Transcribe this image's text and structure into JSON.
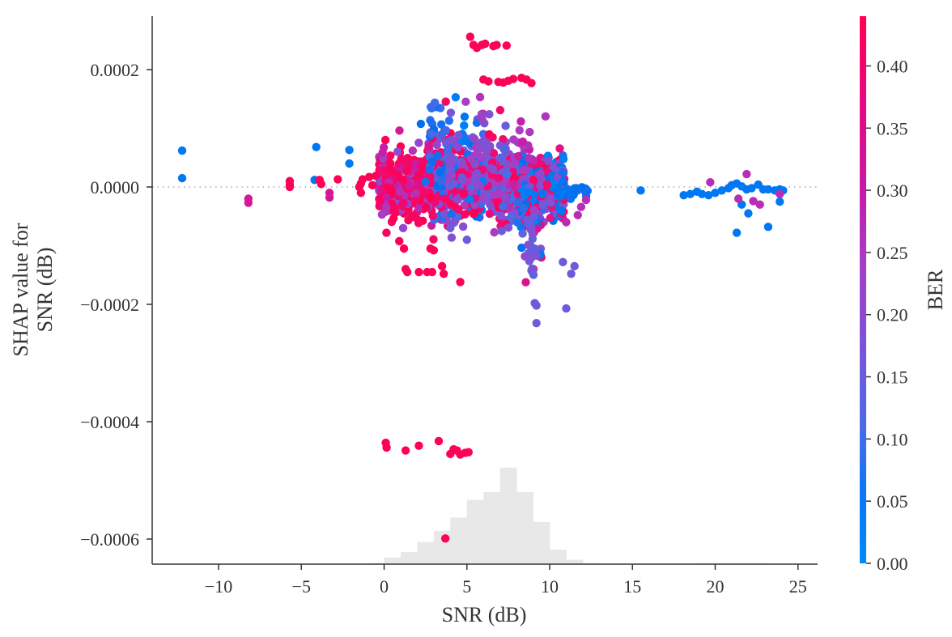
{
  "chart_data": {
    "type": "scatter",
    "title": "",
    "xlabel": "SNR (dB)",
    "ylabel": "SHAP value for\nSNR (dB)",
    "ylabel_lines": [
      "SHAP value for",
      "SNR (dB)"
    ],
    "xlim": [
      -14,
      26.3
    ],
    "ylim": [
      -0.00064,
      0.00029
    ],
    "xticks": [
      -10,
      -5,
      0,
      5,
      10,
      15,
      20,
      25
    ],
    "xtick_labels": [
      "−10",
      "−5",
      "0",
      "5",
      "10",
      "15",
      "20",
      "25"
    ],
    "yticks": [
      0.0002,
      0.0,
      -0.0002,
      -0.0004,
      -0.0006
    ],
    "ytick_labels": [
      "0.0002",
      "0.0000",
      "−0.0002",
      "−0.0004",
      "−0.0006"
    ],
    "zero_line": {
      "y": 0.0,
      "style": "dotted",
      "color": "#999999"
    },
    "grid": false,
    "colorbar": {
      "label": "BER",
      "range": [
        0.0,
        0.44
      ],
      "ticks": [
        0.0,
        0.05,
        0.1,
        0.15,
        0.2,
        0.25,
        0.3,
        0.35,
        0.4
      ],
      "tick_labels": [
        "0.00",
        "0.05",
        "0.10",
        "0.15",
        "0.20",
        "0.25",
        "0.30",
        "0.35",
        "0.40"
      ],
      "colormap": [
        "#008bfb",
        "#0070f0",
        "#4f6ae6",
        "#7c53d6",
        "#a83ec4",
        "#c81ea6",
        "#e0108a",
        "#f20a6c",
        "#ff0052"
      ]
    },
    "histogram": {
      "color": "#e8e8e8",
      "bins_snr": [
        [
          -1,
          0,
          0.01
        ],
        [
          0,
          1,
          0.06
        ],
        [
          1,
          2,
          0.11
        ],
        [
          2,
          3,
          0.2
        ],
        [
          3,
          4,
          0.3
        ],
        [
          4,
          5,
          0.42
        ],
        [
          5,
          6,
          0.58
        ],
        [
          6,
          7,
          0.65
        ],
        [
          7,
          8,
          0.87
        ],
        [
          8,
          9,
          0.65
        ],
        [
          9,
          10,
          0.38
        ],
        [
          10,
          11,
          0.13
        ],
        [
          11,
          12,
          0.04
        ],
        [
          12,
          13,
          0.01
        ],
        [
          18,
          19,
          0.005
        ],
        [
          19,
          20,
          0.01
        ],
        [
          20,
          21,
          0.01
        ],
        [
          21,
          22,
          0.01
        ],
        [
          22,
          23,
          0.01
        ],
        [
          23,
          24,
          0.005
        ]
      ]
    },
    "series": [
      {
        "name": "outliers_high_red",
        "ber": 0.43,
        "points": [
          [
            5.2,
            0.000256
          ],
          [
            5.4,
            0.000242
          ],
          [
            5.6,
            0.000237
          ],
          [
            5.9,
            0.000242
          ],
          [
            6.1,
            0.000244
          ],
          [
            6.6,
            0.00024
          ],
          [
            6.8,
            0.000242
          ],
          [
            7.4,
            0.000241
          ],
          [
            6.0,
            0.000183
          ],
          [
            6.3,
            0.00018
          ],
          [
            6.9,
            0.000179
          ],
          [
            7.2,
            0.000178
          ],
          [
            7.5,
            0.000181
          ],
          [
            7.8,
            0.000184
          ],
          [
            8.3,
            0.000186
          ],
          [
            8.6,
            0.000183
          ],
          [
            8.9,
            0.000177
          ]
        ]
      },
      {
        "name": "outliers_low_red",
        "ber": 0.43,
        "points": [
          [
            0.1,
            -0.000436
          ],
          [
            0.15,
            -0.000444
          ],
          [
            1.3,
            -0.000449
          ],
          [
            2.1,
            -0.000441
          ],
          [
            3.3,
            -0.000433
          ],
          [
            4.0,
            -0.000455
          ],
          [
            4.2,
            -0.000447
          ],
          [
            4.4,
            -0.000449
          ],
          [
            4.6,
            -0.000456
          ],
          [
            4.9,
            -0.000453
          ],
          [
            5.1,
            -0.000452
          ],
          [
            3.7,
            -0.000599
          ]
        ]
      },
      {
        "name": "mid_low_red",
        "ber": 0.43,
        "points": [
          [
            1.2,
            -0.000105
          ],
          [
            1.3,
            -0.00014
          ],
          [
            1.4,
            -0.000145
          ],
          [
            2.1,
            -0.000145
          ],
          [
            2.6,
            -0.000145
          ],
          [
            2.9,
            -0.000145
          ],
          [
            3.5,
            -0.000135
          ],
          [
            3.6,
            -0.000148
          ],
          [
            4.6,
            -0.000162
          ],
          [
            2.8,
            -0.000105
          ],
          [
            3.0,
            -0.000108
          ]
        ]
      },
      {
        "name": "left_blue",
        "ber": 0.04,
        "points": [
          [
            -12.2,
            6.2e-05
          ],
          [
            -12.2,
            1.5e-05
          ],
          [
            -4.1,
            6.8e-05
          ],
          [
            -2.1,
            6.3e-05
          ],
          [
            -2.1,
            4e-05
          ],
          [
            -4.2,
            1.2e-05
          ],
          [
            15.5,
            -6e-06
          ]
        ]
      },
      {
        "name": "left_magenta",
        "ber": 0.3,
        "points": [
          [
            -8.2,
            -2e-05
          ],
          [
            -8.2,
            -2.7e-05
          ],
          [
            -3.3,
            -1e-05
          ],
          [
            -3.3,
            -1.8e-05
          ]
        ]
      },
      {
        "name": "left_red",
        "ber": 0.43,
        "points": [
          [
            -5.7,
            1e-05
          ],
          [
            -5.7,
            4e-06
          ],
          [
            -5.7,
            0.0
          ],
          [
            -3.9,
            1.2e-05
          ],
          [
            -3.8,
            5e-06
          ],
          [
            -2.8,
            1.3e-05
          ],
          [
            -1.5,
            0.0
          ],
          [
            -1.4,
            6e-06
          ],
          [
            -1.3,
            1.3e-05
          ],
          [
            -0.9,
            1.7e-05
          ],
          [
            -0.7,
            3e-06
          ],
          [
            -0.5,
            1.9e-05
          ],
          [
            -1.4,
            -1e-05
          ]
        ]
      },
      {
        "name": "right_cluster_blue",
        "ber": 0.04,
        "points": [
          [
            18.1,
            -1.4e-05
          ],
          [
            18.5,
            -1.2e-05
          ],
          [
            18.9,
            -8e-06
          ],
          [
            19.2,
            -1.2e-05
          ],
          [
            19.6,
            -1.4e-05
          ],
          [
            20.0,
            -1e-05
          ],
          [
            20.4,
            -6e-06
          ],
          [
            20.8,
            -2e-06
          ],
          [
            21.0,
            3e-06
          ],
          [
            21.3,
            6e-06
          ],
          [
            21.6,
            1e-06
          ],
          [
            21.9,
            -4e-06
          ],
          [
            22.2,
            -2e-06
          ],
          [
            22.6,
            4e-06
          ],
          [
            22.9,
            -4e-06
          ],
          [
            23.2,
            -4e-06
          ],
          [
            23.6,
            -6e-06
          ],
          [
            23.9,
            -4e-06
          ],
          [
            24.1,
            -6e-06
          ],
          [
            21.6,
            -3e-05
          ],
          [
            22.0,
            -4.5e-05
          ],
          [
            23.2,
            -6.8e-05
          ],
          [
            23.9,
            -2.5e-05
          ],
          [
            21.3,
            -7.8e-05
          ]
        ]
      },
      {
        "name": "right_cluster_other",
        "ber": 0.25,
        "points": [
          [
            19.7,
            8e-06
          ],
          [
            21.9,
            2.2e-05
          ],
          [
            21.4,
            -2e-05
          ],
          [
            22.7,
            -3e-05
          ],
          [
            23.9,
            -1.2e-05
          ],
          [
            22.3,
            -2.4e-05
          ]
        ]
      }
    ]
  },
  "colorbar": {
    "label": "BER",
    "tick_labels": [
      "0.00",
      "0.05",
      "0.10",
      "0.15",
      "0.20",
      "0.25",
      "0.30",
      "0.35",
      "0.40"
    ]
  },
  "axes": {
    "xlabel": "SNR (dB)",
    "ylabel_line1": "SHAP value for",
    "ylabel_line2": "SNR (dB)"
  }
}
